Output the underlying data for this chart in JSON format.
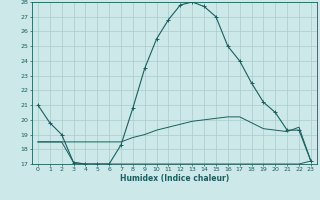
{
  "xlabel": "Humidex (Indice chaleur)",
  "background_color": "#cce8e8",
  "grid_color": "#aacccc",
  "line_color": "#1a5f5f",
  "xlim": [
    -0.5,
    23.5
  ],
  "ylim": [
    17,
    28
  ],
  "yticks": [
    17,
    18,
    19,
    20,
    21,
    22,
    23,
    24,
    25,
    26,
    27,
    28
  ],
  "xticks": [
    0,
    1,
    2,
    3,
    4,
    5,
    6,
    7,
    8,
    9,
    10,
    11,
    12,
    13,
    14,
    15,
    16,
    17,
    18,
    19,
    20,
    21,
    22,
    23
  ],
  "series1_x": [
    0,
    1,
    2,
    3,
    4,
    5,
    6,
    7,
    8,
    9,
    10,
    11,
    12,
    13,
    14,
    15,
    16,
    17,
    18,
    19,
    20,
    21,
    22,
    23
  ],
  "series1_y": [
    21.0,
    19.8,
    19.0,
    17.1,
    17.0,
    17.0,
    17.0,
    18.3,
    20.8,
    23.5,
    25.5,
    26.8,
    27.8,
    28.0,
    27.7,
    27.0,
    25.0,
    24.0,
    22.5,
    21.2,
    20.5,
    19.3,
    19.3,
    17.2
  ],
  "series2_x": [
    0,
    1,
    2,
    3,
    4,
    5,
    6,
    7,
    8,
    9,
    10,
    11,
    12,
    13,
    14,
    15,
    16,
    17,
    18,
    19,
    20,
    21,
    22,
    23
  ],
  "series2_y": [
    18.5,
    18.5,
    18.5,
    18.5,
    18.5,
    18.5,
    18.5,
    18.5,
    18.8,
    19.0,
    19.3,
    19.5,
    19.7,
    19.9,
    20.0,
    20.1,
    20.2,
    20.2,
    19.8,
    19.4,
    19.3,
    19.2,
    19.5,
    17.2
  ],
  "series3_x": [
    0,
    1,
    2,
    3,
    4,
    5,
    6,
    7,
    8,
    9,
    10,
    11,
    12,
    13,
    14,
    15,
    16,
    17,
    18,
    19,
    20,
    21,
    22,
    23
  ],
  "series3_y": [
    18.5,
    18.5,
    18.5,
    17.1,
    17.0,
    17.0,
    17.0,
    17.0,
    17.0,
    17.0,
    17.0,
    17.0,
    17.0,
    17.0,
    17.0,
    17.0,
    17.0,
    17.0,
    17.0,
    17.0,
    17.0,
    17.0,
    17.0,
    17.2
  ]
}
